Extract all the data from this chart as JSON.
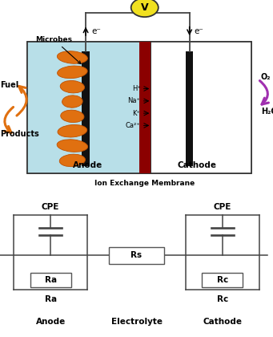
{
  "bg_color": "#ffffff",
  "anode_chamber_color": "#b8dfe8",
  "membrane_color": "#8b0000",
  "electrode_color": "#111111",
  "voltmeter_color": "#f0e020",
  "voltmeter_border": "#333333",
  "orange_color": "#e07010",
  "purple_color": "#a030b0",
  "wire_color": "#444444",
  "circuit_line_color": "#444444",
  "circuit_box_border": "#555555",
  "ion_labels": [
    "H⁺",
    "Na⁺",
    "K⁺",
    "Ca²⁺"
  ]
}
